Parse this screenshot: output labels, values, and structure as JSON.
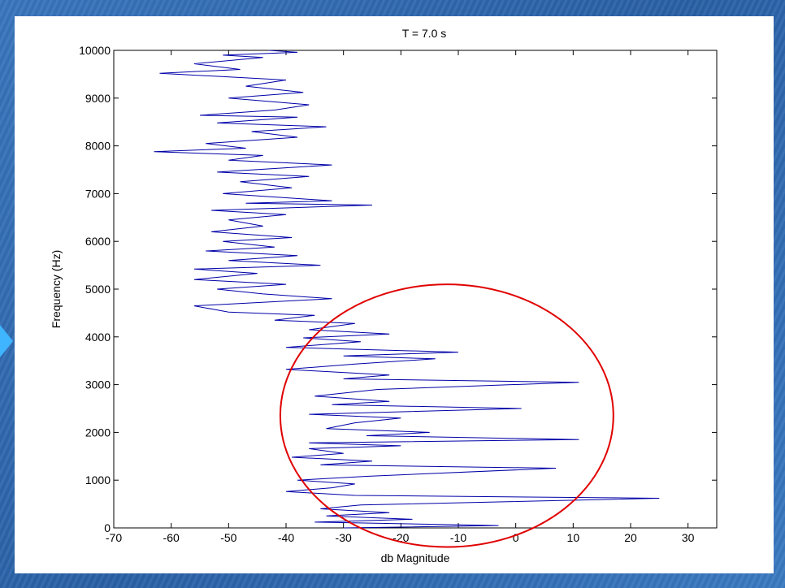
{
  "chart_data": {
    "type": "line",
    "title": "T = 7.0 s",
    "xlabel": "db Magnitude",
    "ylabel": "Frequency (Hz)",
    "xlim": [
      -70,
      35
    ],
    "ylim": [
      0,
      10000
    ],
    "x_ticks": [
      "-70",
      "-60",
      "-50",
      "-40",
      "-30",
      "-20",
      "-10",
      "0",
      "10",
      "20",
      "30"
    ],
    "y_ticks": [
      "0",
      "1000",
      "2000",
      "3000",
      "4000",
      "5000",
      "6000",
      "7000",
      "8000",
      "9000",
      "10000"
    ],
    "grid": false,
    "series": [
      {
        "color": "#0000a8",
        "points": [
          [
            -30,
            0
          ],
          [
            -3,
            50
          ],
          [
            -35,
            120
          ],
          [
            -18,
            180
          ],
          [
            -33,
            250
          ],
          [
            -22,
            320
          ],
          [
            -34,
            400
          ],
          [
            -27,
            480
          ],
          [
            25,
            620
          ],
          [
            -28,
            680
          ],
          [
            -40,
            760
          ],
          [
            -32,
            840
          ],
          [
            -28,
            920
          ],
          [
            -38,
            1000
          ],
          [
            -26,
            1080
          ],
          [
            7,
            1250
          ],
          [
            -34,
            1320
          ],
          [
            -25,
            1400
          ],
          [
            -39,
            1480
          ],
          [
            -30,
            1560
          ],
          [
            -36,
            1660
          ],
          [
            -20,
            1720
          ],
          [
            -36,
            1780
          ],
          [
            11,
            1850
          ],
          [
            -26,
            1930
          ],
          [
            -15,
            2000
          ],
          [
            -33,
            2080
          ],
          [
            -28,
            2200
          ],
          [
            -20,
            2300
          ],
          [
            -36,
            2380
          ],
          [
            1,
            2500
          ],
          [
            -32,
            2580
          ],
          [
            -22,
            2650
          ],
          [
            -35,
            2760
          ],
          [
            -24,
            2900
          ],
          [
            11,
            3050
          ],
          [
            -30,
            3120
          ],
          [
            -22,
            3200
          ],
          [
            -40,
            3320
          ],
          [
            -28,
            3430
          ],
          [
            -14,
            3540
          ],
          [
            -30,
            3600
          ],
          [
            -10,
            3680
          ],
          [
            -40,
            3780
          ],
          [
            -27,
            3900
          ],
          [
            -37,
            3980
          ],
          [
            -22,
            4060
          ],
          [
            -36,
            4150
          ],
          [
            -28,
            4280
          ],
          [
            -42,
            4350
          ],
          [
            -35,
            4450
          ],
          [
            -50,
            4520
          ],
          [
            -56,
            4650
          ],
          [
            -32,
            4800
          ],
          [
            -44,
            4900
          ],
          [
            -52,
            5000
          ],
          [
            -40,
            5100
          ],
          [
            -56,
            5200
          ],
          [
            -45,
            5330
          ],
          [
            -56,
            5420
          ],
          [
            -34,
            5500
          ],
          [
            -50,
            5600
          ],
          [
            -38,
            5700
          ],
          [
            -54,
            5800
          ],
          [
            -42,
            5880
          ],
          [
            -51,
            6000
          ],
          [
            -39,
            6080
          ],
          [
            -53,
            6200
          ],
          [
            -44,
            6320
          ],
          [
            -50,
            6450
          ],
          [
            -40,
            6560
          ],
          [
            -53,
            6650
          ],
          [
            -25,
            6760
          ],
          [
            -47,
            6800
          ],
          [
            -32,
            6850
          ],
          [
            -51,
            7000
          ],
          [
            -39,
            7120
          ],
          [
            -48,
            7250
          ],
          [
            -36,
            7360
          ],
          [
            -52,
            7450
          ],
          [
            -32,
            7600
          ],
          [
            -50,
            7700
          ],
          [
            -44,
            7800
          ],
          [
            -63,
            7880
          ],
          [
            -47,
            7950
          ],
          [
            -54,
            8050
          ],
          [
            -38,
            8180
          ],
          [
            -46,
            8300
          ],
          [
            -33,
            8400
          ],
          [
            -52,
            8480
          ],
          [
            -38,
            8600
          ],
          [
            -55,
            8640
          ],
          [
            -42,
            8750
          ],
          [
            -36,
            8860
          ],
          [
            -50,
            9000
          ],
          [
            -37,
            9120
          ],
          [
            -47,
            9250
          ],
          [
            -40,
            9380
          ],
          [
            -62,
            9520
          ],
          [
            -48,
            9600
          ],
          [
            -56,
            9720
          ],
          [
            -44,
            9850
          ],
          [
            -51,
            9900
          ],
          [
            -38,
            9960
          ],
          [
            -43,
            10000
          ]
        ]
      }
    ],
    "annotation": {
      "shape": "ellipse",
      "color": "#e00000",
      "center": [
        -12,
        2350
      ],
      "x_half_width": 29,
      "y_half_height": 2750
    }
  }
}
